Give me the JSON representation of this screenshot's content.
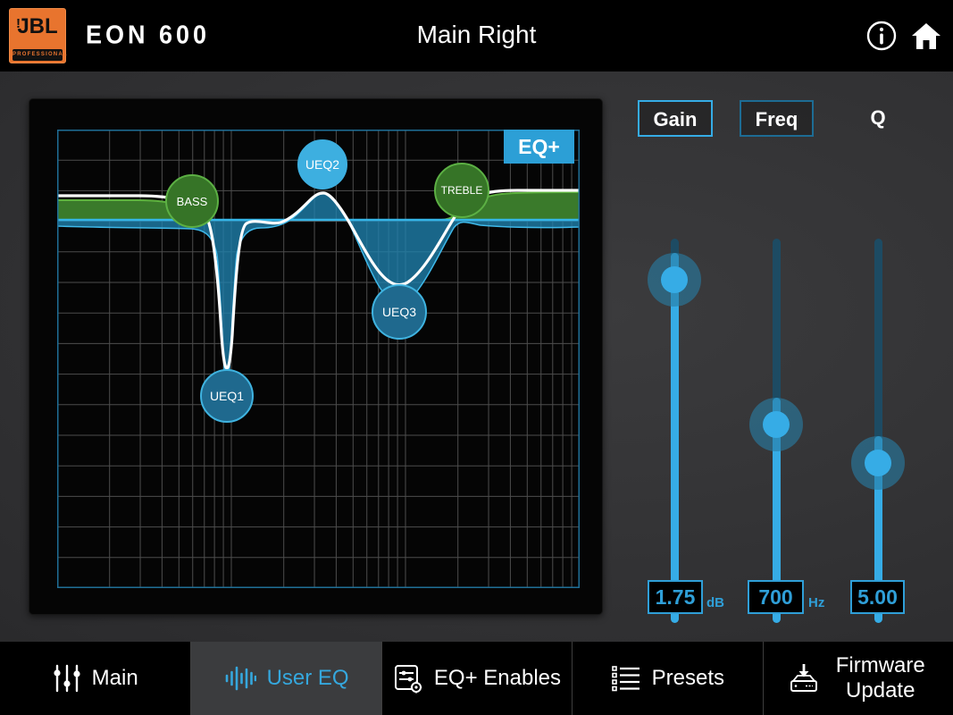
{
  "topbar": {
    "brand": "JBL",
    "brand_bang": "!",
    "brand_tagline": "PROFESSIONAL",
    "model": "EON 600",
    "title": "Main Right"
  },
  "graph": {
    "eq_plus_button": "EQ+",
    "nodes": [
      {
        "id": "bass",
        "label": "BASS"
      },
      {
        "id": "ueq2",
        "label": "UEQ2"
      },
      {
        "id": "treble",
        "label": "TREBLE"
      },
      {
        "id": "ueq3",
        "label": "UEQ3"
      },
      {
        "id": "ueq1",
        "label": "UEQ1"
      }
    ],
    "freq_range_hz": [
      20,
      20000
    ]
  },
  "controls": {
    "params": [
      {
        "label": "Gain",
        "value": "1.75",
        "unit": "dB",
        "selected": true
      },
      {
        "label": "Freq",
        "value": "700",
        "unit": "Hz",
        "selected": false
      },
      {
        "label": "Q",
        "value": "5.00",
        "unit": "",
        "selected": false
      }
    ]
  },
  "tabs": [
    {
      "label": "Main",
      "icon": "mixer-icon",
      "selected": false
    },
    {
      "label": "User EQ",
      "icon": "waveform-icon",
      "selected": true
    },
    {
      "label": "EQ+ Enables",
      "icon": "eq-settings-icon",
      "selected": false
    },
    {
      "label": "Presets",
      "icon": "list-icon",
      "selected": false
    },
    {
      "label": "Firmware Update",
      "icon": "firmware-icon",
      "selected": false
    }
  ],
  "colors": {
    "accent_blue": "#36ace6",
    "dim_blue": "#1d6c94",
    "track_dark": "#1d4b63",
    "eq_fill_blue": "#1f81ae",
    "eq_green": "#3a7a2b",
    "eq_green_edge": "#5db23e",
    "node_teal": "#1f698e",
    "brand_orange": "#e8742e",
    "background_gray": "#343436",
    "selected_tab_gray": "#3b3c3e"
  }
}
